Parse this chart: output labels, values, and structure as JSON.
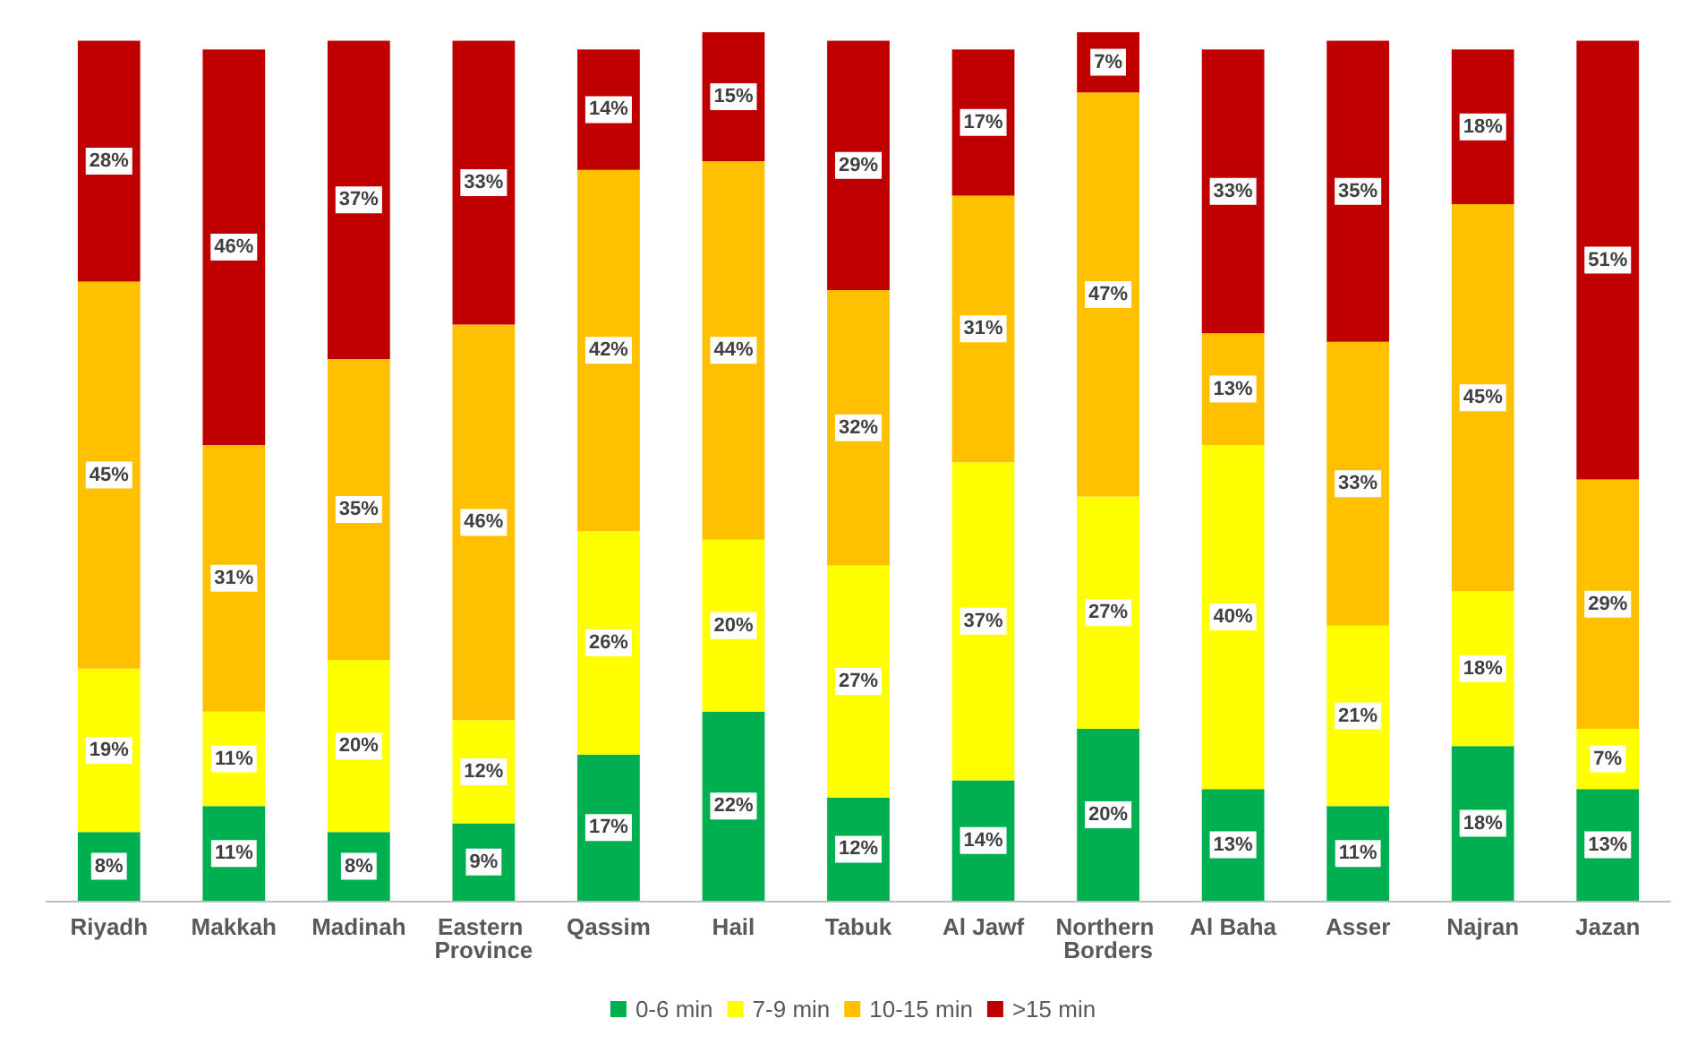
{
  "chart_data": {
    "type": "bar",
    "stacked": true,
    "legend": "bottom",
    "categories": [
      "Riyadh",
      "Makkah",
      "Madinah",
      "Eastern Province",
      "Qassim",
      "Hail",
      "Tabuk",
      "Al Jawf",
      "Northern Borders",
      "Al Baha",
      "Asser",
      "Najran",
      "Jazan"
    ],
    "series": [
      {
        "name": "0-6 min",
        "color": "#00b050",
        "values": [
          8,
          11,
          8,
          9,
          17,
          22,
          12,
          14,
          20,
          13,
          11,
          18,
          13
        ],
        "value_labels": [
          "8%",
          "11%",
          "8%",
          "9%",
          "17%",
          "22%",
          "12%",
          "14%",
          "20%",
          "13%",
          "11%",
          "18%",
          "13%"
        ]
      },
      {
        "name": "7-9 min",
        "color": "#ffff00",
        "values": [
          19,
          11,
          20,
          12,
          26,
          20,
          27,
          37,
          27,
          40,
          21,
          18,
          7
        ],
        "value_labels": [
          "19%",
          "11%",
          "20%",
          "12%",
          "26%",
          "20%",
          "27%",
          "37%",
          "27%",
          "40%",
          "21%",
          "18%",
          "7%"
        ]
      },
      {
        "name": "10-15 min",
        "color": "#ffc000",
        "values": [
          45,
          31,
          35,
          46,
          42,
          44,
          32,
          31,
          47,
          13,
          33,
          45,
          29
        ],
        "value_labels": [
          "45%",
          "31%",
          "35%",
          "46%",
          "42%",
          "44%",
          "32%",
          "31%",
          "47%",
          "13%",
          "33%",
          "45%",
          "29%"
        ]
      },
      {
        "name": ">15 min",
        "color": "#c00000",
        "values": [
          28,
          46,
          37,
          33,
          14,
          15,
          29,
          17,
          7,
          33,
          35,
          18,
          51
        ],
        "value_labels": [
          "28%",
          "46%",
          "37%",
          "33%",
          "14%",
          "15%",
          "29%",
          "17%",
          "7%",
          "33%",
          "35%",
          "18%",
          "51%"
        ]
      }
    ]
  }
}
